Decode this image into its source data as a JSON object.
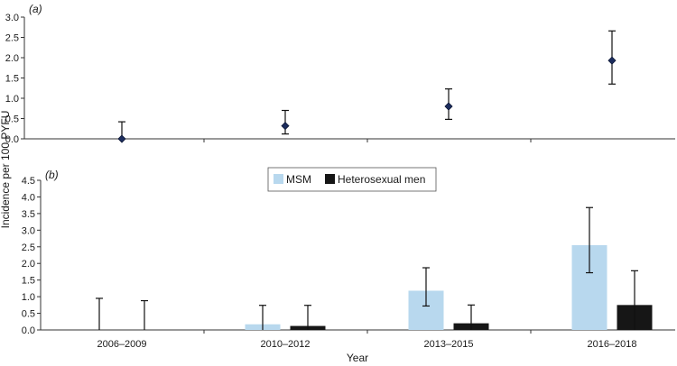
{
  "chart_data": [
    {
      "panel_label": "(a)",
      "type": "scatter",
      "categories": [
        "2006–2009",
        "2010–2012",
        "2013–2015",
        "2016–2018"
      ],
      "series": [
        {
          "values": [
            0.0,
            0.32,
            0.8,
            1.93
          ],
          "ci_lower": [
            0.0,
            0.12,
            0.48,
            1.35
          ],
          "ci_upper": [
            0.42,
            0.7,
            1.23,
            2.66
          ],
          "color": "#1c2d5e"
        }
      ],
      "ylim": [
        0,
        3.0
      ],
      "yticks": [
        "0.0",
        "0.5",
        "1.0",
        "1.5",
        "2.0",
        "2.5",
        "3.0"
      ]
    },
    {
      "panel_label": "(b)",
      "type": "bar",
      "categories": [
        "2006–2009",
        "2010–2012",
        "2013–2015",
        "2016–2018"
      ],
      "series": [
        {
          "name": "MSM",
          "values": [
            0.0,
            0.17,
            1.18,
            2.55
          ],
          "ci_lower": [
            0.0,
            0.0,
            0.72,
            1.72
          ],
          "ci_upper": [
            0.95,
            0.74,
            1.87,
            3.68
          ],
          "color": "#b8d8ee"
        },
        {
          "name": "Heterosexual men",
          "values": [
            0.0,
            0.12,
            0.2,
            0.75
          ],
          "ci_lower": [
            0.0,
            0.0,
            0.0,
            0.0
          ],
          "ci_upper": [
            0.88,
            0.74,
            0.75,
            1.78
          ],
          "color": "#161616"
        }
      ],
      "ylim": [
        0,
        4.5
      ],
      "yticks": [
        "0.0",
        "0.5",
        "1.0",
        "1.5",
        "2.0",
        "2.5",
        "3.0",
        "3.5",
        "4.0",
        "4.5"
      ],
      "legend_position": "top-center"
    }
  ],
  "xlabel": "Year",
  "ylabel": "Incidence per 100 PYFU"
}
